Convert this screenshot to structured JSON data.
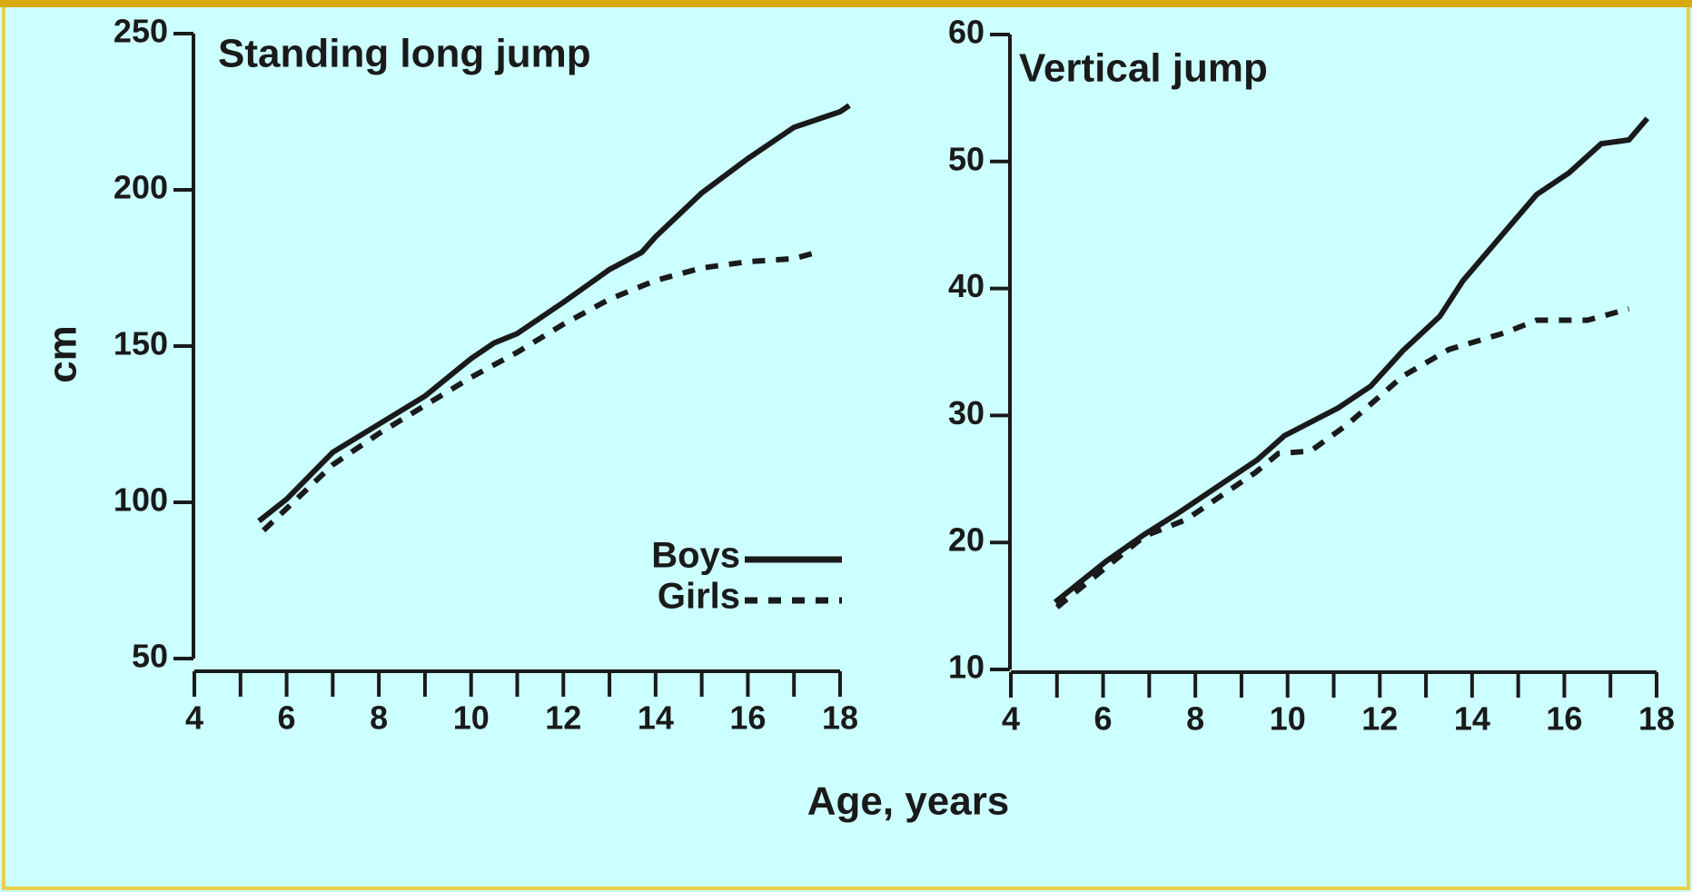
{
  "xlabel": "Age, years",
  "chart_data": [
    {
      "type": "line",
      "title": "Standing long jump",
      "ylabel": "cm",
      "xlim": [
        4,
        18
      ],
      "xticks": [
        4,
        6,
        8,
        10,
        12,
        14,
        16,
        18
      ],
      "xminorticks": [
        5,
        7,
        9,
        11,
        13,
        15,
        17
      ],
      "ylim": [
        50,
        250
      ],
      "yticks": [
        50,
        100,
        150,
        200,
        250
      ],
      "legend": "lower right",
      "series": [
        {
          "name": "Boys",
          "color": "#1a1a1a",
          "line_style": "solid",
          "x": [
            5.4,
            6,
            7,
            8,
            9,
            10,
            10.5,
            11,
            12,
            13,
            13.7,
            14,
            15,
            16,
            17,
            18,
            18.2
          ],
          "values": [
            94,
            101,
            116,
            125,
            134,
            146,
            151,
            154,
            164,
            174.5,
            180,
            185,
            199,
            210,
            220,
            225,
            227
          ]
        },
        {
          "name": "Girls",
          "color": "#1a1a1a",
          "line_style": "dashed",
          "x": [
            5.5,
            7,
            8,
            9,
            10,
            11,
            12,
            13,
            14,
            15,
            16,
            17,
            17.5
          ],
          "values": [
            91,
            112,
            122,
            131,
            140,
            148,
            157,
            165,
            171,
            175,
            177,
            178,
            180
          ]
        }
      ]
    },
    {
      "type": "line",
      "title": "Vertical jump",
      "xlim": [
        4,
        18
      ],
      "xticks": [
        4,
        6,
        8,
        10,
        12,
        14,
        16,
        18
      ],
      "xminorticks": [
        5,
        7,
        9,
        11,
        13,
        15,
        17
      ],
      "ylim": [
        10,
        60
      ],
      "yticks": [
        10,
        20,
        30,
        40,
        50,
        60
      ],
      "series": [
        {
          "name": "Boys",
          "color": "#1a1a1a",
          "line_style": "solid",
          "x": [
            4.96,
            6.06,
            6.88,
            7.58,
            9.34,
            9.93,
            11.1,
            11.8,
            12.5,
            13.3,
            13.8,
            15.4,
            16.1,
            16.8,
            17.4,
            17.8
          ],
          "values": [
            15.3,
            18.5,
            20.6,
            22.2,
            26.5,
            28.4,
            30.6,
            32.3,
            35.1,
            37.8,
            40.6,
            47.4,
            49.1,
            51.4,
            51.7,
            53.4
          ]
        },
        {
          "name": "Girls",
          "color": "#1a1a1a",
          "line_style": "dashed",
          "x": [
            5.0,
            6.9,
            7.8,
            9.3,
            9.8,
            10.5,
            11.3,
            12.5,
            13.5,
            14.7,
            15.4,
            16.5,
            17.4
          ],
          "values": [
            14.9,
            20.5,
            21.8,
            25.5,
            27.0,
            27.2,
            29.3,
            33.1,
            35.2,
            36.5,
            37.5,
            37.5,
            38.4
          ]
        }
      ]
    }
  ]
}
